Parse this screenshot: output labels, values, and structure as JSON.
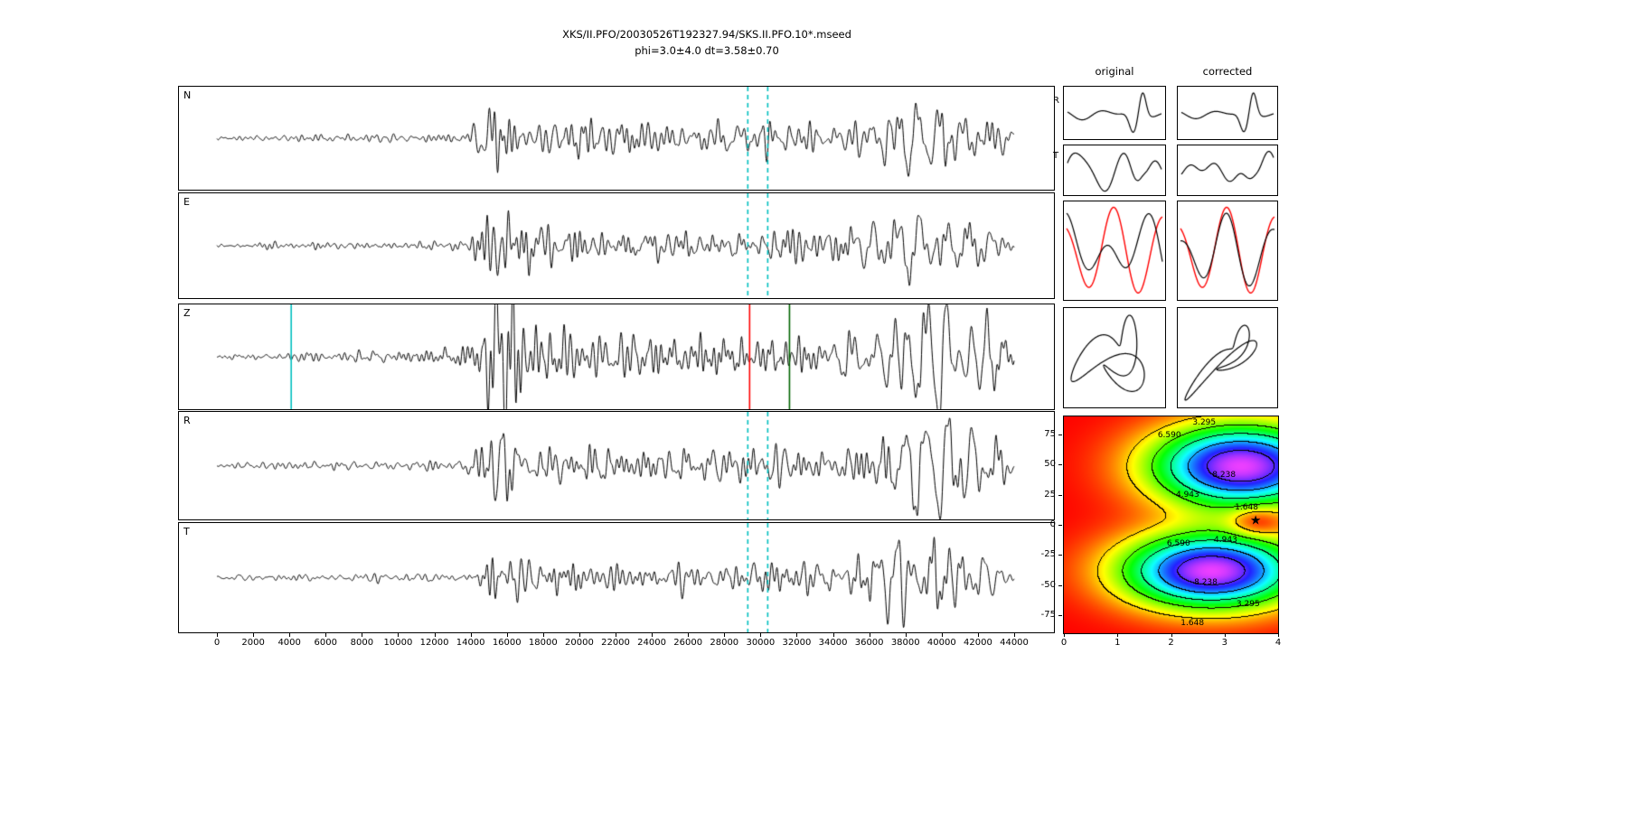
{
  "figure": {
    "title_line1": "XKS/II.PFO/20030526T192327.94/SKS.II.PFO.10*.mseed",
    "title_line2": "phi=3.0±4.0 dt=3.58±0.70"
  },
  "chart_data": {
    "type": "line",
    "description": "Shear-wave splitting diagnostic figure: five seismogram component panels (N, E, Z, R, T) versus time samples, original vs corrected comparison panels (R trace, T trace, R/T overlay, particle motion), and a splitting-parameter energy map with best solution star.",
    "colors": {
      "trace": "#000000",
      "window_line": "#00bfbf",
      "pick_red": "#ff0000",
      "pick_green": "#006400",
      "overlay_red": "#ff0000"
    },
    "time_axis": {
      "min": 0,
      "max": 44000,
      "tick_interval": 2000
    },
    "panels": [
      {
        "label": "N",
        "seed": 11,
        "scale": 0.85,
        "markers": [
          {
            "x": 29300,
            "color": "#00bfbf",
            "style": "dashed"
          },
          {
            "x": 30400,
            "color": "#00bfbf",
            "style": "dashed"
          }
        ],
        "env_hi": [
          [
            0,
            0.05
          ],
          [
            1500,
            0.09
          ],
          [
            8000,
            0.11
          ],
          [
            13500,
            0.13
          ],
          [
            14600,
            0.55
          ],
          [
            15600,
            1.0
          ],
          [
            16600,
            0.8
          ],
          [
            18500,
            0.55
          ],
          [
            21000,
            0.45
          ],
          [
            25000,
            0.4
          ],
          [
            28500,
            0.42
          ],
          [
            30500,
            0.55
          ],
          [
            33000,
            0.5
          ],
          [
            35500,
            0.48
          ],
          [
            38000,
            0.6
          ],
          [
            40500,
            0.62
          ],
          [
            42500,
            0.5
          ],
          [
            43500,
            0.3
          ],
          [
            44000,
            0.18
          ]
        ],
        "env_lo": [
          [
            0,
            0
          ],
          [
            33000,
            0.05
          ],
          [
            36500,
            0.25
          ],
          [
            38500,
            0.6
          ],
          [
            40500,
            0.65
          ],
          [
            42000,
            0.5
          ],
          [
            43500,
            0.2
          ],
          [
            44000,
            0.1
          ]
        ]
      },
      {
        "label": "E",
        "seed": 22,
        "scale": 0.9,
        "markers": [
          {
            "x": 29300,
            "color": "#00bfbf",
            "style": "dashed"
          },
          {
            "x": 30400,
            "color": "#00bfbf",
            "style": "dashed"
          }
        ],
        "env_hi": [
          [
            0,
            0.04
          ],
          [
            1500,
            0.08
          ],
          [
            8000,
            0.1
          ],
          [
            13500,
            0.13
          ],
          [
            14600,
            0.6
          ],
          [
            15500,
            1.1
          ],
          [
            16800,
            0.75
          ],
          [
            18500,
            0.5
          ],
          [
            21000,
            0.42
          ],
          [
            25000,
            0.38
          ],
          [
            28500,
            0.4
          ],
          [
            30500,
            0.6
          ],
          [
            33000,
            0.5
          ],
          [
            35500,
            0.45
          ],
          [
            38000,
            0.55
          ],
          [
            40500,
            0.55
          ],
          [
            42500,
            0.45
          ],
          [
            43500,
            0.3
          ],
          [
            44000,
            0.15
          ]
        ],
        "env_lo": [
          [
            0,
            0
          ],
          [
            33000,
            0.05
          ],
          [
            36500,
            0.35
          ],
          [
            38200,
            0.95
          ],
          [
            40000,
            1.15
          ],
          [
            41500,
            1.0
          ],
          [
            43000,
            0.45
          ],
          [
            44000,
            0.15
          ]
        ]
      },
      {
        "label": "Z",
        "seed": 33,
        "scale": 1.0,
        "markers": [
          {
            "x": 4100,
            "color": "#00bfbf",
            "style": "solid"
          },
          {
            "x": 29400,
            "color": "#ff0000",
            "style": "solid"
          },
          {
            "x": 31600,
            "color": "#006400",
            "style": "solid"
          }
        ],
        "env_hi": [
          [
            0,
            0.04
          ],
          [
            3000,
            0.07
          ],
          [
            4200,
            0.12
          ],
          [
            6000,
            0.1
          ],
          [
            12000,
            0.12
          ],
          [
            14200,
            0.3
          ],
          [
            15000,
            1.3
          ],
          [
            15600,
            1.9
          ],
          [
            16400,
            1.5
          ],
          [
            17200,
            0.9
          ],
          [
            18500,
            0.6
          ],
          [
            21000,
            0.5
          ],
          [
            24000,
            0.45
          ],
          [
            28000,
            0.42
          ],
          [
            30000,
            0.5
          ],
          [
            32000,
            0.5
          ],
          [
            34000,
            0.45
          ],
          [
            36000,
            0.45
          ],
          [
            38500,
            0.6
          ],
          [
            40500,
            0.65
          ],
          [
            42000,
            0.55
          ],
          [
            43200,
            0.35
          ],
          [
            44000,
            0.15
          ]
        ],
        "env_lo": [
          [
            0,
            0
          ],
          [
            33000,
            0.05
          ],
          [
            36500,
            0.3
          ],
          [
            38500,
            0.8
          ],
          [
            40300,
            0.95
          ],
          [
            42000,
            0.7
          ],
          [
            43200,
            0.35
          ],
          [
            44000,
            0.12
          ]
        ]
      },
      {
        "label": "R",
        "seed": 44,
        "scale": 0.9,
        "markers": [
          {
            "x": 29300,
            "color": "#00bfbf",
            "style": "dashed"
          },
          {
            "x": 30400,
            "color": "#00bfbf",
            "style": "dashed"
          }
        ],
        "env_hi": [
          [
            0,
            0.04
          ],
          [
            1500,
            0.08
          ],
          [
            8000,
            0.1
          ],
          [
            13500,
            0.13
          ],
          [
            14600,
            0.6
          ],
          [
            15500,
            1.05
          ],
          [
            16800,
            0.75
          ],
          [
            18500,
            0.5
          ],
          [
            21000,
            0.42
          ],
          [
            25000,
            0.38
          ],
          [
            28500,
            0.4
          ],
          [
            30500,
            0.6
          ],
          [
            33000,
            0.5
          ],
          [
            35500,
            0.45
          ],
          [
            38000,
            0.55
          ],
          [
            40500,
            0.55
          ],
          [
            42500,
            0.45
          ],
          [
            43500,
            0.3
          ],
          [
            44000,
            0.15
          ]
        ],
        "env_lo": [
          [
            0,
            0
          ],
          [
            33000,
            0.05
          ],
          [
            36500,
            0.35
          ],
          [
            38200,
            0.9
          ],
          [
            40000,
            1.1
          ],
          [
            41500,
            0.95
          ],
          [
            43000,
            0.4
          ],
          [
            44000,
            0.12
          ]
        ]
      },
      {
        "label": "T",
        "seed": 55,
        "scale": 0.8,
        "markers": [
          {
            "x": 29300,
            "color": "#00bfbf",
            "style": "dashed"
          },
          {
            "x": 30400,
            "color": "#00bfbf",
            "style": "dashed"
          }
        ],
        "env_hi": [
          [
            0,
            0.04
          ],
          [
            2000,
            0.08
          ],
          [
            8000,
            0.1
          ],
          [
            13500,
            0.12
          ],
          [
            14800,
            0.5
          ],
          [
            15700,
            0.85
          ],
          [
            17000,
            0.6
          ],
          [
            19000,
            0.45
          ],
          [
            22000,
            0.4
          ],
          [
            26000,
            0.38
          ],
          [
            29000,
            0.42
          ],
          [
            31000,
            0.55
          ],
          [
            33500,
            0.5
          ],
          [
            36000,
            0.55
          ],
          [
            38000,
            0.6
          ],
          [
            40000,
            0.55
          ],
          [
            42000,
            0.45
          ],
          [
            43500,
            0.25
          ],
          [
            44000,
            0.12
          ]
        ],
        "env_lo": [
          [
            0,
            0
          ],
          [
            32000,
            0.08
          ],
          [
            34500,
            0.35
          ],
          [
            36500,
            0.5
          ],
          [
            38500,
            0.45
          ],
          [
            40500,
            0.42
          ],
          [
            42500,
            0.3
          ],
          [
            44000,
            0.1
          ]
        ]
      }
    ],
    "side_panels": {
      "col_headers": [
        "original",
        "corrected"
      ],
      "row_labels": [
        "R",
        "T"
      ],
      "rows": [
        "R waveform",
        "T waveform",
        "R/T overlay",
        "particle motion"
      ]
    },
    "energy_map": {
      "x_range": [
        0,
        4
      ],
      "y_range": [
        -90,
        90
      ],
      "x_ticks": [
        0,
        1,
        2,
        3,
        4
      ],
      "y_ticks": [
        75,
        50,
        25,
        0,
        -25,
        -50,
        -75
      ],
      "contour_levels": [
        1.648,
        3.295,
        4.943,
        6.59,
        8.238
      ],
      "best_fit": {
        "dt": 3.58,
        "phi": 3.0
      },
      "star_symbol": "★",
      "contour_labels": [
        {
          "text": "3.295",
          "dt": 2.62,
          "phi": 85
        },
        {
          "text": "6.590",
          "dt": 1.97,
          "phi": 74
        },
        {
          "text": "8.238",
          "dt": 2.99,
          "phi": 41
        },
        {
          "text": "4.943",
          "dt": 2.31,
          "phi": 25
        },
        {
          "text": "1.648",
          "dt": 3.41,
          "phi": 14
        },
        {
          "text": "6.590",
          "dt": 2.14,
          "phi": -16
        },
        {
          "text": "4.943",
          "dt": 3.02,
          "phi": -13
        },
        {
          "text": "8.238",
          "dt": 2.65,
          "phi": -48
        },
        {
          "text": "3.295",
          "dt": 3.44,
          "phi": -66
        },
        {
          "text": "1.648",
          "dt": 2.4,
          "phi": -82
        }
      ]
    }
  }
}
